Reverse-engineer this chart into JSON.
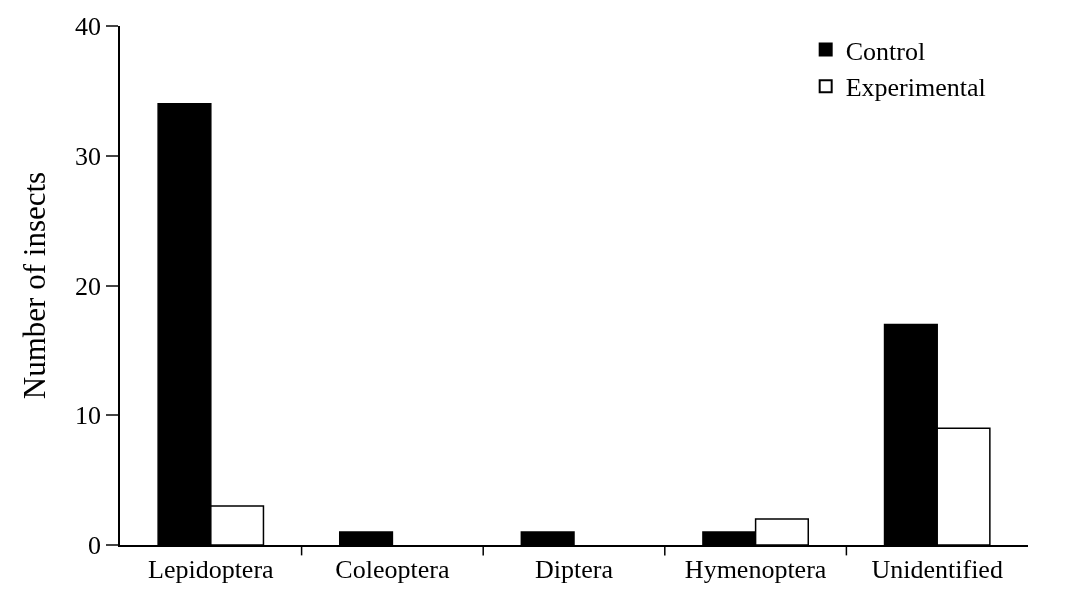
{
  "chart_data": {
    "type": "bar",
    "ylabel": "Number of insects",
    "categories": [
      "Lepidoptera",
      "Coleoptera",
      "Diptera",
      "Hymenoptera",
      "Unidentified"
    ],
    "series": [
      {
        "name": "Control",
        "color": "#000000",
        "values": [
          34,
          1,
          1,
          1,
          17
        ]
      },
      {
        "name": "Experimental",
        "color": "#ffffff",
        "values": [
          3,
          0,
          0,
          2,
          9
        ]
      }
    ],
    "ylim": [
      0,
      40
    ],
    "yticks": [
      0,
      10,
      20,
      30,
      40
    ],
    "legend": "top right"
  }
}
